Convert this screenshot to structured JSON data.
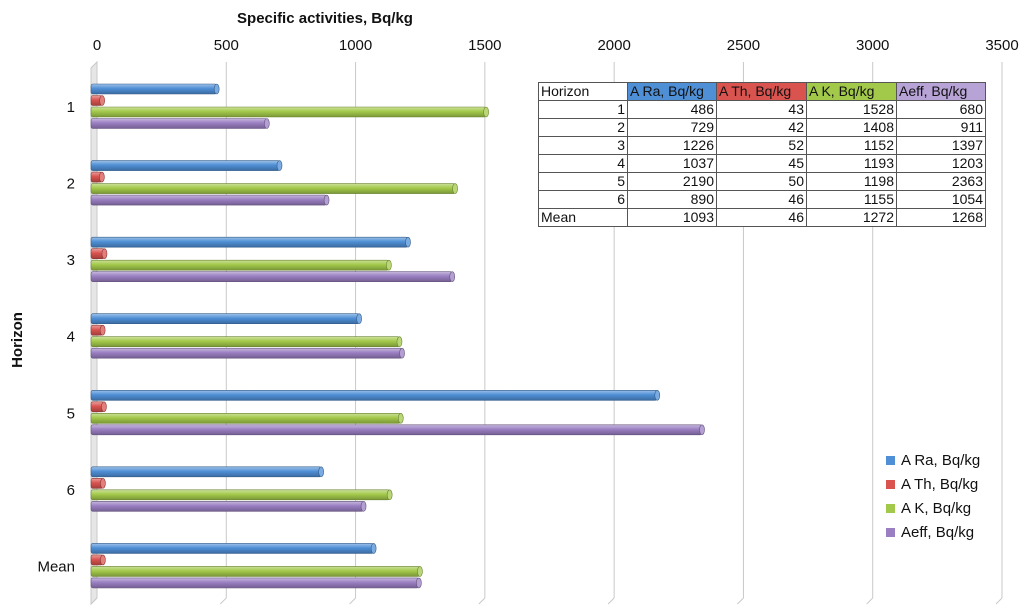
{
  "chart_data": {
    "type": "bar",
    "orientation": "horizontal",
    "title": "",
    "xlabel": "Specific activities, Bq/kg",
    "ylabel": "Horizon",
    "xlim": [
      0,
      3500
    ],
    "xticks": [
      "0",
      "500",
      "1000",
      "1500",
      "2000",
      "2500",
      "3000",
      "3500"
    ],
    "categories": [
      "1",
      "2",
      "3",
      "4",
      "5",
      "6",
      "Mean"
    ],
    "series": [
      {
        "name": "A Ra, Bq/kg",
        "color": "#4f8fd6",
        "values": [
          486,
          729,
          1226,
          1037,
          2190,
          890,
          1093
        ]
      },
      {
        "name": "A Th, Bq/kg",
        "color": "#d9534f",
        "values": [
          43,
          42,
          52,
          45,
          50,
          46,
          46
        ]
      },
      {
        "name": "A K, Bq/kg",
        "color": "#a3c94a",
        "values": [
          1528,
          1408,
          1152,
          1193,
          1198,
          1155,
          1272
        ]
      },
      {
        "name": "Aeff, Bq/kg",
        "color": "#9a7fc2",
        "values": [
          680,
          911,
          1397,
          1203,
          2363,
          1054,
          1268
        ]
      }
    ],
    "grid": true,
    "legend_position": "bottom-right",
    "table": {
      "header": [
        "Horizon",
        "A Ra, Bq/kg",
        "A Th, Bq/kg",
        "A K, Bq/kg",
        "Aeff, Bq/kg"
      ],
      "header_colors": [
        "#ffffff",
        "#4f8fd6",
        "#d9534f",
        "#a3c94a",
        "#b8a3d6"
      ],
      "rows": [
        [
          "1",
          "486",
          "43",
          "1528",
          "680"
        ],
        [
          "2",
          "729",
          "42",
          "1408",
          "911"
        ],
        [
          "3",
          "1226",
          "52",
          "1152",
          "1397"
        ],
        [
          "4",
          "1037",
          "45",
          "1193",
          "1203"
        ],
        [
          "5",
          "2190",
          "50",
          "1198",
          "2363"
        ],
        [
          "6",
          "890",
          "46",
          "1155",
          "1054"
        ],
        [
          "Mean",
          "1093",
          "46",
          "1272",
          "1268"
        ]
      ]
    }
  }
}
